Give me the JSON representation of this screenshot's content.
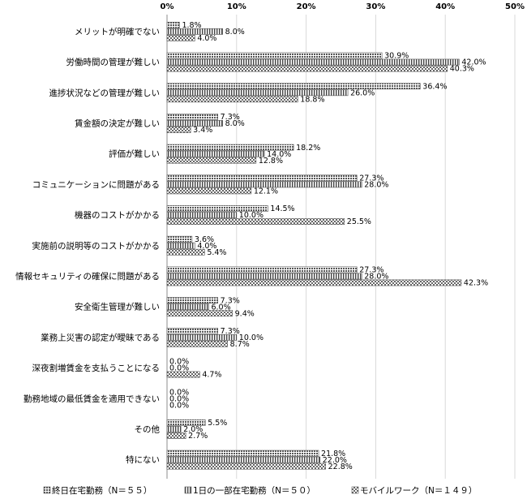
{
  "chart_data": {
    "type": "bar",
    "orientation": "horizontal",
    "title": "",
    "xlabel": "",
    "ylabel": "",
    "xlim": [
      0,
      50
    ],
    "x_ticks": [
      "0%",
      "10%",
      "20%",
      "30%",
      "40%",
      "50%"
    ],
    "x_tick_values": [
      0,
      10,
      20,
      30,
      40,
      50
    ],
    "grid": true,
    "legend_position": "bottom",
    "categories": [
      "メリットが明確でない",
      "労働時間の管理が難しい",
      "進捗状況などの管理が難しい",
      "賃金額の決定が難しい",
      "評価が難しい",
      "コミュニケーションに問題がある",
      "機器のコストがかかる",
      "実施前の説明等のコストがかかる",
      "情報セキュリティの確保に問題がある",
      "安全衛生管理が難しい",
      "業務上災害の認定が曖昧である",
      "深夜割増賃金を支払うことになる",
      "勤務地域の最低賃金を適用できない",
      "その他",
      "特にない"
    ],
    "series": [
      {
        "name": "終日在宅勤務（N＝５５）",
        "pattern": "dense-check",
        "values": [
          1.8,
          30.9,
          36.4,
          7.3,
          18.2,
          27.3,
          14.5,
          3.6,
          27.3,
          7.3,
          7.3,
          0.0,
          0.0,
          5.5,
          21.8
        ],
        "labels": [
          "1.8%",
          "30.9%",
          "36.4%",
          "7.3%",
          "18.2%",
          "27.3%",
          "14.5%",
          "3.6%",
          "27.3%",
          "7.3%",
          "7.3%",
          "0.0%",
          "0.0%",
          "5.5%",
          "21.8%"
        ]
      },
      {
        "name": "1日の一部在宅勤務（N＝５０）",
        "pattern": "vertical-stripes",
        "values": [
          8.0,
          42.0,
          26.0,
          8.0,
          14.0,
          28.0,
          10.0,
          4.0,
          28.0,
          6.0,
          10.0,
          0.0,
          0.0,
          2.0,
          22.0
        ],
        "labels": [
          "8.0%",
          "42.0%",
          "26.0%",
          "8.0%",
          "14.0%",
          "28.0%",
          "10.0%",
          "4.0%",
          "28.0%",
          "6.0%",
          "10.0%",
          "0.0%",
          "0.0%",
          "2.0%",
          "22.0%"
        ]
      },
      {
        "name": "モバイルワーク（N＝１４９）",
        "pattern": "cross-check",
        "values": [
          4.0,
          40.3,
          18.8,
          3.4,
          12.8,
          12.1,
          25.5,
          5.4,
          42.3,
          9.4,
          8.7,
          4.7,
          0.0,
          2.7,
          22.8
        ],
        "labels": [
          "4.0%",
          "40.3%",
          "18.8%",
          "3.4%",
          "12.8%",
          "12.1%",
          "25.5%",
          "5.4%",
          "42.3%",
          "9.4%",
          "8.7%",
          "4.7%",
          "0.0%",
          "2.7%",
          "22.8%"
        ]
      }
    ]
  }
}
